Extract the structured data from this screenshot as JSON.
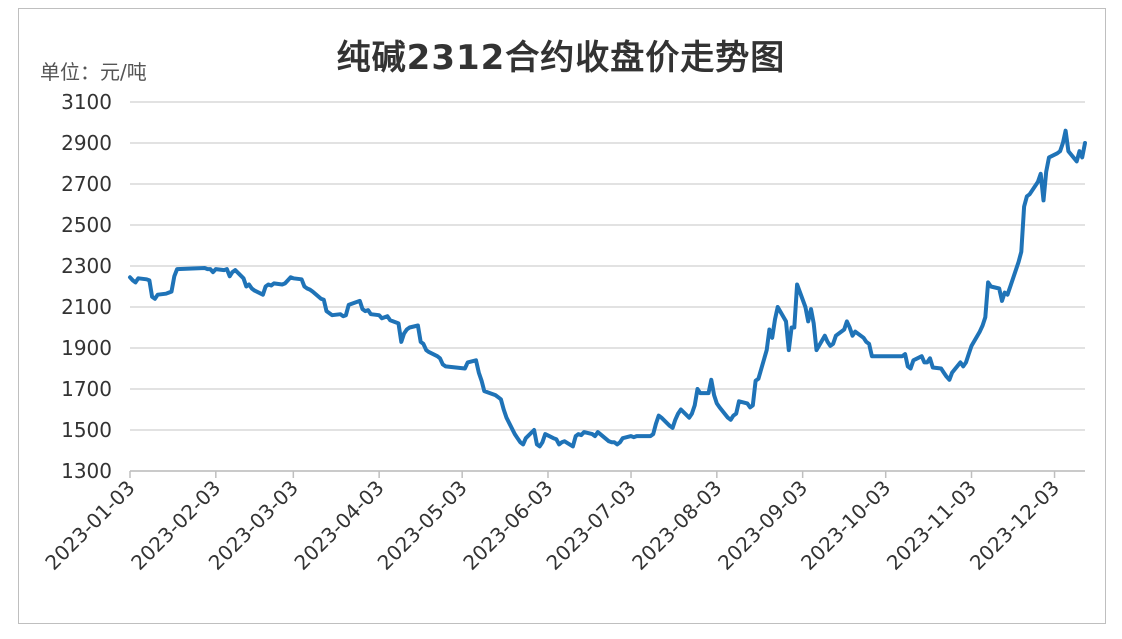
{
  "chart_data": {
    "type": "line",
    "title": "纯碱2312合约收盘价走势图",
    "unit": "单位：元/吨",
    "ylim": [
      1300,
      3100
    ],
    "yticks": [
      "1300",
      "1500",
      "1700",
      "1900",
      "2100",
      "2300",
      "2500",
      "2700",
      "2900",
      "3100"
    ],
    "xticks": [
      "2023-01-03",
      "2023-02-03",
      "2023-03-03",
      "2023-04-03",
      "2023-05-03",
      "2023-06-03",
      "2023-07-03",
      "2023-08-03",
      "2023-09-03",
      "2023-10-03",
      "2023-11-03",
      "2023-12-03"
    ],
    "xlim": [
      "2023-01-03",
      "2023-12-13"
    ],
    "grid": "horizontal",
    "color": "#1f73b7",
    "series": [
      {
        "points": [
          [
            "2023-01-03",
            2245
          ],
          [
            "2023-01-04",
            2230
          ],
          [
            "2023-01-05",
            2220
          ],
          [
            "2023-01-06",
            2240
          ],
          [
            "2023-01-09",
            2235
          ],
          [
            "2023-01-10",
            2230
          ],
          [
            "2023-01-11",
            2150
          ],
          [
            "2023-01-12",
            2140
          ],
          [
            "2023-01-13",
            2160
          ],
          [
            "2023-01-16",
            2165
          ],
          [
            "2023-01-17",
            2170
          ],
          [
            "2023-01-18",
            2175
          ],
          [
            "2023-01-19",
            2250
          ],
          [
            "2023-01-20",
            2285
          ],
          [
            "2023-01-30",
            2290
          ],
          [
            "2023-01-31",
            2285
          ],
          [
            "2023-02-01",
            2285
          ],
          [
            "2023-02-02",
            2270
          ],
          [
            "2023-02-03",
            2285
          ],
          [
            "2023-02-06",
            2280
          ],
          [
            "2023-02-07",
            2285
          ],
          [
            "2023-02-08",
            2250
          ],
          [
            "2023-02-09",
            2270
          ],
          [
            "2023-02-10",
            2280
          ],
          [
            "2023-02-13",
            2240
          ],
          [
            "2023-02-14",
            2200
          ],
          [
            "2023-02-15",
            2210
          ],
          [
            "2023-02-16",
            2190
          ],
          [
            "2023-02-17",
            2180
          ],
          [
            "2023-02-20",
            2160
          ],
          [
            "2023-02-21",
            2200
          ],
          [
            "2023-02-22",
            2210
          ],
          [
            "2023-02-23",
            2205
          ],
          [
            "2023-02-24",
            2215
          ],
          [
            "2023-02-27",
            2210
          ],
          [
            "2023-02-28",
            2215
          ],
          [
            "2023-03-01",
            2230
          ],
          [
            "2023-03-02",
            2245
          ],
          [
            "2023-03-03",
            2240
          ],
          [
            "2023-03-06",
            2235
          ],
          [
            "2023-03-07",
            2200
          ],
          [
            "2023-03-08",
            2190
          ],
          [
            "2023-03-09",
            2185
          ],
          [
            "2023-03-10",
            2175
          ],
          [
            "2023-03-13",
            2140
          ],
          [
            "2023-03-14",
            2135
          ],
          [
            "2023-03-15",
            2080
          ],
          [
            "2023-03-16",
            2070
          ],
          [
            "2023-03-17",
            2060
          ],
          [
            "2023-03-20",
            2065
          ],
          [
            "2023-03-21",
            2055
          ],
          [
            "2023-03-22",
            2060
          ],
          [
            "2023-03-23",
            2110
          ],
          [
            "2023-03-24",
            2115
          ],
          [
            "2023-03-27",
            2130
          ],
          [
            "2023-03-28",
            2090
          ],
          [
            "2023-03-29",
            2080
          ],
          [
            "2023-03-30",
            2085
          ],
          [
            "2023-03-31",
            2065
          ],
          [
            "2023-04-03",
            2060
          ],
          [
            "2023-04-04",
            2045
          ],
          [
            "2023-04-06",
            2055
          ],
          [
            "2023-04-07",
            2035
          ],
          [
            "2023-04-10",
            2020
          ],
          [
            "2023-04-11",
            1930
          ],
          [
            "2023-04-12",
            1970
          ],
          [
            "2023-04-13",
            1990
          ],
          [
            "2023-04-14",
            2000
          ],
          [
            "2023-04-17",
            2010
          ],
          [
            "2023-04-18",
            1930
          ],
          [
            "2023-04-19",
            1920
          ],
          [
            "2023-04-20",
            1890
          ],
          [
            "2023-04-21",
            1880
          ],
          [
            "2023-04-24",
            1860
          ],
          [
            "2023-04-25",
            1850
          ],
          [
            "2023-04-26",
            1820
          ],
          [
            "2023-04-27",
            1810
          ],
          [
            "2023-05-04",
            1800
          ],
          [
            "2023-05-05",
            1830
          ],
          [
            "2023-05-08",
            1840
          ],
          [
            "2023-05-09",
            1780
          ],
          [
            "2023-05-10",
            1740
          ],
          [
            "2023-05-11",
            1690
          ],
          [
            "2023-05-15",
            1670
          ],
          [
            "2023-05-16",
            1660
          ],
          [
            "2023-05-17",
            1650
          ],
          [
            "2023-05-18",
            1600
          ],
          [
            "2023-05-19",
            1560
          ],
          [
            "2023-05-22",
            1480
          ],
          [
            "2023-05-23",
            1460
          ],
          [
            "2023-05-24",
            1440
          ],
          [
            "2023-05-25",
            1430
          ],
          [
            "2023-05-26",
            1460
          ],
          [
            "2023-05-29",
            1500
          ],
          [
            "2023-05-30",
            1430
          ],
          [
            "2023-05-31",
            1420
          ],
          [
            "2023-06-01",
            1440
          ],
          [
            "2023-06-02",
            1480
          ],
          [
            "2023-06-05",
            1460
          ],
          [
            "2023-06-06",
            1455
          ],
          [
            "2023-06-07",
            1430
          ],
          [
            "2023-06-08",
            1440
          ],
          [
            "2023-06-09",
            1445
          ],
          [
            "2023-06-12",
            1420
          ],
          [
            "2023-06-13",
            1470
          ],
          [
            "2023-06-14",
            1480
          ],
          [
            "2023-06-15",
            1475
          ],
          [
            "2023-06-16",
            1490
          ],
          [
            "2023-06-19",
            1480
          ],
          [
            "2023-06-20",
            1470
          ],
          [
            "2023-06-21",
            1490
          ],
          [
            "2023-06-25",
            1445
          ],
          [
            "2023-06-26",
            1440
          ],
          [
            "2023-06-27",
            1440
          ],
          [
            "2023-06-28",
            1430
          ],
          [
            "2023-06-29",
            1440
          ],
          [
            "2023-06-30",
            1460
          ],
          [
            "2023-07-03",
            1470
          ],
          [
            "2023-07-04",
            1465
          ],
          [
            "2023-07-05",
            1470
          ],
          [
            "2023-07-06",
            1470
          ],
          [
            "2023-07-07",
            1470
          ],
          [
            "2023-07-10",
            1470
          ],
          [
            "2023-07-11",
            1480
          ],
          [
            "2023-07-12",
            1530
          ],
          [
            "2023-07-13",
            1570
          ],
          [
            "2023-07-14",
            1560
          ],
          [
            "2023-07-17",
            1520
          ],
          [
            "2023-07-18",
            1510
          ],
          [
            "2023-07-19",
            1550
          ],
          [
            "2023-07-20",
            1580
          ],
          [
            "2023-07-21",
            1600
          ],
          [
            "2023-07-24",
            1560
          ],
          [
            "2023-07-25",
            1580
          ],
          [
            "2023-07-26",
            1620
          ],
          [
            "2023-07-27",
            1700
          ],
          [
            "2023-07-28",
            1680
          ],
          [
            "2023-07-31",
            1680
          ],
          [
            "2023-08-01",
            1745
          ],
          [
            "2023-08-02",
            1670
          ],
          [
            "2023-08-03",
            1630
          ],
          [
            "2023-08-04",
            1610
          ],
          [
            "2023-08-07",
            1560
          ],
          [
            "2023-08-08",
            1550
          ],
          [
            "2023-08-09",
            1570
          ],
          [
            "2023-08-10",
            1580
          ],
          [
            "2023-08-11",
            1640
          ],
          [
            "2023-08-14",
            1630
          ],
          [
            "2023-08-15",
            1610
          ],
          [
            "2023-08-16",
            1620
          ],
          [
            "2023-08-17",
            1740
          ],
          [
            "2023-08-18",
            1750
          ],
          [
            "2023-08-21",
            1890
          ],
          [
            "2023-08-22",
            1990
          ],
          [
            "2023-08-23",
            1950
          ],
          [
            "2023-08-24",
            2040
          ],
          [
            "2023-08-25",
            2100
          ],
          [
            "2023-08-28",
            2030
          ],
          [
            "2023-08-29",
            1890
          ],
          [
            "2023-08-30",
            2000
          ],
          [
            "2023-08-31",
            2000
          ],
          [
            "2023-09-01",
            2210
          ],
          [
            "2023-09-04",
            2100
          ],
          [
            "2023-09-05",
            2030
          ],
          [
            "2023-09-06",
            2090
          ],
          [
            "2023-09-07",
            2020
          ],
          [
            "2023-09-08",
            1890
          ],
          [
            "2023-09-11",
            1960
          ],
          [
            "2023-09-12",
            1930
          ],
          [
            "2023-09-13",
            1910
          ],
          [
            "2023-09-14",
            1920
          ],
          [
            "2023-09-15",
            1960
          ],
          [
            "2023-09-18",
            1990
          ],
          [
            "2023-09-19",
            2030
          ],
          [
            "2023-09-20",
            2000
          ],
          [
            "2023-09-21",
            1960
          ],
          [
            "2023-09-22",
            1980
          ],
          [
            "2023-09-25",
            1950
          ],
          [
            "2023-09-26",
            1930
          ],
          [
            "2023-09-27",
            1920
          ],
          [
            "2023-09-28",
            1860
          ],
          [
            "2023-10-09",
            1860
          ],
          [
            "2023-10-10",
            1870
          ],
          [
            "2023-10-11",
            1810
          ],
          [
            "2023-10-12",
            1800
          ],
          [
            "2023-10-13",
            1840
          ],
          [
            "2023-10-16",
            1860
          ],
          [
            "2023-10-17",
            1830
          ],
          [
            "2023-10-18",
            1830
          ],
          [
            "2023-10-19",
            1850
          ],
          [
            "2023-10-20",
            1805
          ],
          [
            "2023-10-23",
            1800
          ],
          [
            "2023-10-24",
            1780
          ],
          [
            "2023-10-25",
            1760
          ],
          [
            "2023-10-26",
            1745
          ],
          [
            "2023-10-27",
            1780
          ],
          [
            "2023-10-30",
            1830
          ],
          [
            "2023-10-31",
            1810
          ],
          [
            "2023-11-01",
            1830
          ],
          [
            "2023-11-02",
            1870
          ],
          [
            "2023-11-03",
            1910
          ],
          [
            "2023-11-06",
            1980
          ],
          [
            "2023-11-07",
            2010
          ],
          [
            "2023-11-08",
            2050
          ],
          [
            "2023-11-09",
            2220
          ],
          [
            "2023-11-10",
            2200
          ],
          [
            "2023-11-13",
            2190
          ],
          [
            "2023-11-14",
            2130
          ],
          [
            "2023-11-15",
            2170
          ],
          [
            "2023-11-16",
            2160
          ],
          [
            "2023-11-17",
            2200
          ],
          [
            "2023-11-20",
            2320
          ],
          [
            "2023-11-21",
            2370
          ],
          [
            "2023-11-22",
            2590
          ],
          [
            "2023-11-23",
            2640
          ],
          [
            "2023-11-24",
            2650
          ],
          [
            "2023-11-27",
            2710
          ],
          [
            "2023-11-28",
            2750
          ],
          [
            "2023-11-29",
            2620
          ],
          [
            "2023-11-30",
            2760
          ],
          [
            "2023-12-01",
            2830
          ],
          [
            "2023-12-04",
            2850
          ],
          [
            "2023-12-05",
            2860
          ],
          [
            "2023-12-06",
            2900
          ],
          [
            "2023-12-07",
            2960
          ],
          [
            "2023-12-08",
            2860
          ],
          [
            "2023-12-11",
            2810
          ],
          [
            "2023-12-12",
            2860
          ],
          [
            "2023-12-13",
            2830
          ],
          [
            "2023-12-14",
            2900
          ]
        ]
      }
    ]
  }
}
